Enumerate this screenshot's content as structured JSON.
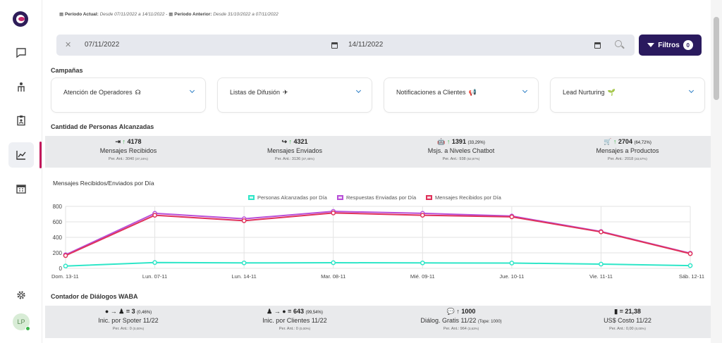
{
  "period": {
    "actual_label": "Período Actual:",
    "actual_range": "Desde 07/11/2022 a 14/11/2022",
    "separator": " - ",
    "previous_label": "Período Anterior:",
    "previous_range": "Desde 31/10/2022 a 07/11/2022"
  },
  "date_filter": {
    "start": "07/11/2022",
    "end": "14/11/2022",
    "clear_symbol": "✕"
  },
  "filters_button": {
    "label": "Filtros",
    "count": "0"
  },
  "campaigns": {
    "title": "Campañas",
    "items": [
      {
        "label": "Atención de Operadores",
        "icon": "headset-icon",
        "glyph": "☊"
      },
      {
        "label": "Listas de Difusión",
        "icon": "paper-plane-icon",
        "glyph": "✈"
      },
      {
        "label": "Notificaciones a Clientes",
        "icon": "megaphone-icon",
        "glyph": "📢"
      },
      {
        "label": "Lead Nurturing",
        "icon": "seedling-icon",
        "glyph": "🌱"
      }
    ]
  },
  "reach": {
    "title": "Cantidad de Personas Alcanzadas",
    "stats": [
      {
        "icon": "sign-in-icon",
        "glyph": "⇥",
        "value": "4178",
        "pct": "",
        "label": "Mensajes Recibidos",
        "prev": "Per. Ant.: 3040",
        "prev_pct": "(37,24%)"
      },
      {
        "icon": "share-icon",
        "glyph": "↪",
        "value": "4321",
        "pct": "",
        "label": "Mensajes Enviados",
        "prev": "Per. Ant.: 3136",
        "prev_pct": "(37,45%)"
      },
      {
        "icon": "robot-icon",
        "glyph": "🤖",
        "value": "1391",
        "pct": "(33,29%)",
        "label": "Msjs. a Niveles Chatbot",
        "prev": "Per. Ant.: 938",
        "prev_pct": "(52,87%)"
      },
      {
        "icon": "cart-icon",
        "glyph": "🛒",
        "value": "2704",
        "pct": "(64,72%)",
        "label": "Mensajes a Productos",
        "prev": "Per. Ant.: 2018",
        "prev_pct": "(33,57%)"
      }
    ]
  },
  "chart_data": {
    "type": "line",
    "title": "Mensajes Recibidos/Enviados por Día",
    "xlabel": "",
    "ylabel": "",
    "categories": [
      "Dom. 13-11",
      "Lun. 07-11",
      "Lun. 14-11",
      "Mar. 08-11",
      "Mié. 09-11",
      "Jue. 10-11",
      "Vie. 11-11",
      "Sáb. 12-11"
    ],
    "y_ticks": [
      "0",
      "200",
      "400",
      "600",
      "800"
    ],
    "ylim": [
      0,
      800
    ],
    "grid": true,
    "legend_position": "top-center",
    "series": [
      {
        "name": "Personas Alcanzadas por Día",
        "color": "#2ee6c8",
        "values": [
          30,
          75,
          70,
          73,
          70,
          68,
          55,
          35
        ]
      },
      {
        "name": "Respuestas Enviadas por Día",
        "color": "#b84fd8",
        "values": [
          175,
          710,
          640,
          735,
          710,
          675,
          475,
          195
        ]
      },
      {
        "name": "Mensajes Recibidos por Día",
        "color": "#e0325a",
        "values": [
          165,
          685,
          615,
          715,
          685,
          665,
          470,
          190
        ]
      }
    ]
  },
  "waba": {
    "title": "Contador de Diálogos WABA",
    "stats": [
      {
        "icon": "whatsapp-to-user-icon",
        "glyph": "● → ♟ =",
        "value": "3",
        "pct": "(0,46%)",
        "label": "Inic. por Spoter 11/22",
        "prev": "Per. Ant.: 0",
        "prev_pct": "(0,00%)"
      },
      {
        "icon": "user-to-whatsapp-icon",
        "glyph": "♟ → ● =",
        "value": "643",
        "pct": "(99,54%)",
        "label": "Inic. por Clientes 11/22",
        "prev": "Per. Ant.: 0",
        "prev_pct": "(0,00%)"
      },
      {
        "icon": "comments-icon",
        "glyph": "💬 ↑",
        "value": "1000",
        "pct": "",
        "label": "Diálog. Gratis 11/22",
        "label_extra": "(Tope: 1000)",
        "prev": "Per. Ant.: 964",
        "prev_pct": "(3,63%)"
      },
      {
        "icon": "invoice-icon",
        "glyph": "▮ =",
        "value": "21,38",
        "pct": "",
        "label": "US$ Costo 11/22",
        "prev": "Per. Ant.: 0,00",
        "prev_pct": "(0,00%)"
      }
    ]
  },
  "user": {
    "initials": "LP"
  }
}
